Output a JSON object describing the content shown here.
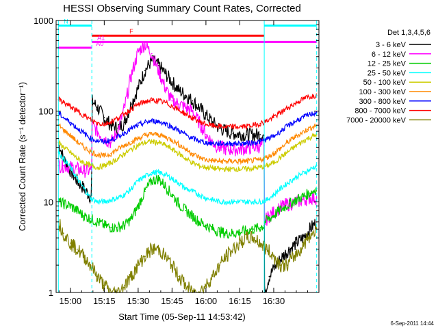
{
  "chart_data": {
    "type": "line",
    "title": "HESSI Observing Summary Count Rates, Corrected",
    "xlabel": "Start Time (05-Sep-11 14:53:42)",
    "ylabel": "Corrected Count Rate (s⁻¹ detector⁻¹)",
    "y_scale": "log",
    "ylim": [
      1,
      1000
    ],
    "xlim": [
      893.7,
      1010
    ],
    "x_unit": "minutes since 00:00 UT on 05-Sep-2011",
    "x_ticks": [
      {
        "value": 900,
        "label": "15:00"
      },
      {
        "value": 915,
        "label": "15:15"
      },
      {
        "value": 930,
        "label": "15:30"
      },
      {
        "value": 945,
        "label": "15:45"
      },
      {
        "value": 960,
        "label": "16:00"
      },
      {
        "value": 975,
        "label": "16:15"
      },
      {
        "value": 990,
        "label": "16:30"
      }
    ],
    "y_ticks": [
      {
        "value": 1,
        "label": "1"
      },
      {
        "value": 10,
        "label": "10"
      },
      {
        "value": 100,
        "label": "100"
      },
      {
        "value": 1000,
        "label": "1000"
      }
    ],
    "legend_title": "Det 1,3,4,5,6",
    "legend_position": "right",
    "footer_date": "6-Sep-2011 14:44",
    "night_markers": [
      909.5,
      1009.0
    ],
    "day_markers": [
      894.7,
      985.8
    ],
    "flags": [
      {
        "name": "N",
        "color": "#00ffff",
        "segments": [
          [
            894.7,
            909.5
          ],
          [
            985.8,
            1009.0
          ]
        ],
        "y": 880
      },
      {
        "name": "F",
        "color": "#ff0000",
        "segments": [
          [
            909.5,
            985.8
          ]
        ],
        "y": 680
      },
      {
        "name": "A0",
        "color": "#ff00ff",
        "segments": [
          [
            894.7,
            909.5
          ]
        ],
        "y": 500
      },
      {
        "name": "A1",
        "color": "#ff00ff",
        "segments": [
          [
            909.5,
            1009.0
          ]
        ],
        "y": 580
      }
    ],
    "series": [
      {
        "name": "3 - 6 keV",
        "color": "#000000",
        "x": [
          894.7,
          897,
          900,
          903,
          906,
          909.4,
          909.6,
          912,
          915,
          918,
          921,
          924,
          927,
          930,
          933,
          936,
          939,
          942,
          945,
          948,
          951,
          954,
          957,
          960,
          963,
          966,
          969,
          972,
          975,
          978,
          981,
          984,
          985.7,
          985.9,
          988,
          991,
          994,
          997,
          1000,
          1003,
          1006,
          1009
        ],
        "y": [
          45,
          30,
          22,
          17,
          14,
          11,
          130,
          110,
          85,
          70,
          65,
          75,
          120,
          180,
          280,
          360,
          320,
          260,
          210,
          170,
          150,
          130,
          110,
          90,
          75,
          65,
          60,
          57,
          56,
          55,
          55,
          55,
          54,
          1,
          1.5,
          2,
          2.5,
          3,
          3.5,
          4,
          5,
          6
        ]
      },
      {
        "name": "6 - 12 keV",
        "color": "#ff00ff",
        "x": [
          894.7,
          897,
          900,
          903,
          906,
          909.4,
          909.6,
          912,
          915,
          918,
          921,
          924,
          927,
          930,
          933,
          936,
          939,
          942,
          945,
          948,
          951,
          954,
          957,
          960,
          963,
          966,
          969,
          972,
          975,
          978,
          981,
          984,
          985.7,
          985.9,
          988,
          991,
          994,
          997,
          1000,
          1003,
          1006,
          1009
        ],
        "y": [
          25,
          25,
          24,
          23,
          22,
          22,
          70,
          60,
          50,
          45,
          60,
          110,
          250,
          450,
          550,
          430,
          280,
          180,
          130,
          120,
          110,
          100,
          75,
          55,
          45,
          40,
          38,
          38,
          38,
          39,
          40,
          41,
          42,
          6,
          7,
          8,
          9,
          9.5,
          10,
          10.5,
          11,
          11
        ]
      },
      {
        "name": "12 - 25 keV",
        "color": "#00cc00",
        "x": [
          894.7,
          897,
          900,
          903,
          906,
          909,
          912,
          915,
          918,
          921,
          924,
          927,
          930,
          933,
          936,
          939,
          942,
          945,
          948,
          951,
          954,
          957,
          960,
          963,
          966,
          969,
          972,
          975,
          978,
          981,
          984,
          985.7,
          985.9,
          988,
          991,
          994,
          997,
          1000,
          1003,
          1006,
          1009
        ],
        "y": [
          10,
          9.5,
          9,
          8,
          7,
          6.5,
          6,
          5.5,
          5.2,
          5.2,
          5.5,
          6.5,
          9,
          13,
          17,
          18,
          15,
          12,
          9.5,
          8,
          7,
          6,
          5.5,
          5,
          4.7,
          4.5,
          4.5,
          4.6,
          4.8,
          5,
          5.2,
          5.5,
          6,
          6.5,
          7.5,
          8.5,
          9.5,
          10.5,
          11.5,
          12.5,
          14
        ]
      },
      {
        "name": "25 - 50 keV",
        "color": "#00ffff",
        "x": [
          894.7,
          897,
          900,
          903,
          906,
          909,
          912,
          915,
          918,
          921,
          924,
          927,
          930,
          933,
          936,
          939,
          942,
          945,
          948,
          951,
          954,
          957,
          960,
          963,
          966,
          969,
          972,
          975,
          978,
          981,
          984,
          987,
          990,
          993,
          996,
          999,
          1002,
          1005,
          1009
        ],
        "y": [
          35,
          30,
          24,
          18,
          14,
          11,
          10,
          10,
          10.5,
          11,
          12,
          14,
          17,
          19,
          21,
          21,
          20,
          18,
          16,
          14,
          13,
          12,
          11,
          10.5,
          10,
          10,
          10,
          10,
          10,
          10,
          10,
          10.5,
          12,
          14,
          16,
          18,
          20,
          22,
          25
        ]
      },
      {
        "name": "50 - 100 keV",
        "color": "#cccc00",
        "x": [
          894.7,
          897,
          900,
          903,
          906,
          909,
          912,
          915,
          918,
          921,
          924,
          927,
          930,
          933,
          936,
          939,
          942,
          945,
          948,
          951,
          954,
          957,
          960,
          963,
          966,
          969,
          972,
          975,
          978,
          981,
          984,
          987,
          990,
          993,
          996,
          999,
          1002,
          1005,
          1009
        ],
        "y": [
          45,
          40,
          35,
          30,
          27,
          25,
          24,
          25,
          27,
          30,
          34,
          38,
          42,
          45,
          46,
          45,
          42,
          38,
          34,
          30,
          27,
          25,
          24,
          23.5,
          23,
          23,
          23,
          23,
          23,
          23.5,
          24,
          25,
          27,
          31,
          35,
          40,
          45,
          50,
          55
        ]
      },
      {
        "name": "100 - 300 keV",
        "color": "#ff8800",
        "x": [
          894.7,
          897,
          900,
          903,
          906,
          909,
          912,
          915,
          918,
          921,
          924,
          927,
          930,
          933,
          936,
          939,
          942,
          945,
          948,
          951,
          954,
          957,
          960,
          963,
          966,
          969,
          972,
          975,
          978,
          981,
          984,
          987,
          990,
          993,
          996,
          999,
          1002,
          1005,
          1009
        ],
        "y": [
          70,
          62,
          54,
          46,
          40,
          36,
          33,
          32,
          34,
          38,
          42,
          46,
          50,
          54,
          56,
          55,
          52,
          48,
          43,
          38,
          34,
          31,
          29,
          28.5,
          28,
          28,
          28,
          28,
          28,
          28.5,
          29,
          31,
          34,
          39,
          45,
          51,
          57,
          63,
          70
        ]
      },
      {
        "name": "300 - 800 keV",
        "color": "#0000ff",
        "x": [
          894.7,
          897,
          900,
          903,
          906,
          909,
          912,
          915,
          918,
          921,
          924,
          927,
          930,
          933,
          936,
          939,
          942,
          945,
          948,
          951,
          954,
          957,
          960,
          963,
          966,
          969,
          972,
          975,
          978,
          981,
          984,
          987,
          990,
          993,
          996,
          999,
          1002,
          1005,
          1009
        ],
        "y": [
          95,
          85,
          75,
          65,
          57,
          50,
          47,
          46,
          48,
          52,
          58,
          64,
          70,
          75,
          78,
          77,
          73,
          67,
          61,
          55,
          50,
          47,
          45,
          44,
          44,
          44,
          44,
          44,
          44,
          45,
          46,
          49,
          53,
          60,
          68,
          76,
          83,
          90,
          97
        ]
      },
      {
        "name": "800 - 7000 keV",
        "color": "#ff0000",
        "x": [
          894.7,
          897,
          900,
          903,
          906,
          909,
          912,
          915,
          918,
          921,
          924,
          927,
          930,
          933,
          936,
          939,
          942,
          945,
          948,
          951,
          954,
          957,
          960,
          963,
          966,
          969,
          972,
          975,
          978,
          981,
          984,
          987,
          990,
          993,
          996,
          999,
          1002,
          1005,
          1009
        ],
        "y": [
          135,
          125,
          112,
          100,
          90,
          80,
          74,
          72,
          76,
          84,
          94,
          106,
          118,
          127,
          132,
          130,
          124,
          114,
          103,
          93,
          84,
          77,
          72,
          69,
          68,
          67,
          67,
          67,
          68,
          70,
          73,
          78,
          86,
          96,
          108,
          120,
          132,
          143,
          150
        ]
      },
      {
        "name": "7000 - 20000 keV",
        "color": "#808000",
        "x": [
          894.7,
          897,
          900,
          903,
          906,
          909,
          912,
          915,
          918,
          921,
          924,
          927,
          930,
          933,
          936,
          939,
          942,
          945,
          948,
          951,
          954,
          957,
          960,
          963,
          966,
          969,
          972,
          975,
          978,
          981,
          984,
          987,
          990,
          993,
          996,
          999,
          1002,
          1005,
          1009
        ],
        "y": [
          6,
          4.5,
          3.5,
          3,
          2.5,
          2,
          1.5,
          1.2,
          1,
          1,
          1.2,
          1.5,
          2,
          2.5,
          3,
          3,
          2.5,
          2,
          1.5,
          1.2,
          1,
          1,
          1.2,
          1.5,
          2,
          2.5,
          3,
          3.5,
          4,
          4,
          3.5,
          3,
          2.5,
          2,
          2,
          2.5,
          3,
          4,
          5
        ]
      }
    ]
  }
}
